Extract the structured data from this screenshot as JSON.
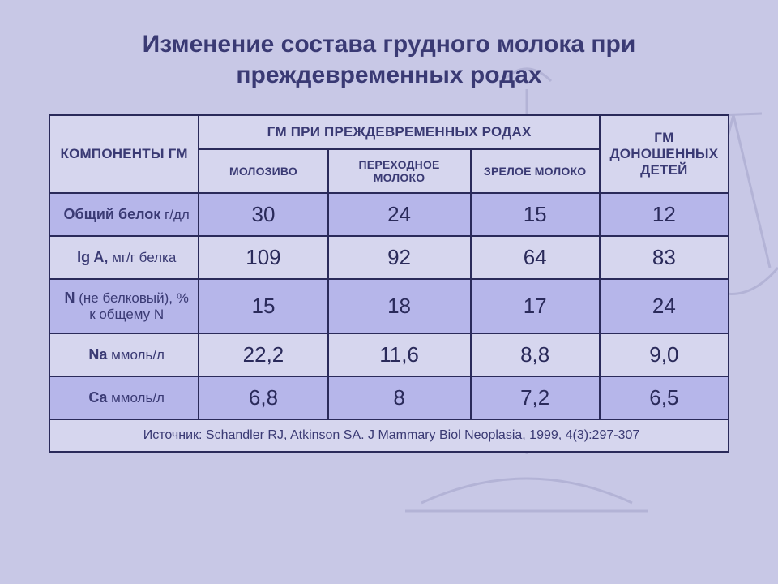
{
  "slide": {
    "title": "Изменение состава грудного молока при преждевременных родах",
    "title_color": "#3a3a74",
    "title_fontsize": 30,
    "title_fontweight": "700",
    "bg_color": "#c8c8e6"
  },
  "scales_watermark": {
    "stroke": "#b3b3d6",
    "stroke_width": 3
  },
  "table": {
    "border_color": "#2a2a5a",
    "border_width": 2,
    "header_bg": "#d6d6ee",
    "header_color": "#3a3a74",
    "header_fontsize": 17,
    "header_fontweight": "700",
    "subheader_fontsize": 14,
    "row_alt1_bg": "#b6b6ea",
    "row_alt2_bg": "#d6d6ee",
    "label_color": "#3a3a74",
    "label_fontsize": 17,
    "label_bold_fontsize": 18,
    "value_color": "#2a2a5a",
    "value_fontsize": 26,
    "columns": {
      "group": "Компоненты ГМ",
      "super": "ГМ при преждевременных родах",
      "sub": [
        "Молозиво",
        "Переходное молоко",
        "Зрелое молоко"
      ],
      "right": "ГМ доношенных детей"
    },
    "rows": [
      {
        "bold": "Общий белок",
        "rest": " г/дл",
        "bg": "#b6b6ea",
        "cells": [
          "30",
          "24",
          "15",
          "12"
        ]
      },
      {
        "bold": "Ig A,",
        "rest": " мг/г белка",
        "bg": "#d6d6ee",
        "cells": [
          "109",
          "92",
          "64",
          "83"
        ]
      },
      {
        "bold": "N",
        "rest": " (не белковый), % к общему N",
        "bg": "#b6b6ea",
        "cells": [
          "15",
          "18",
          "17",
          "24"
        ]
      },
      {
        "bold": "Na",
        "rest": " ммоль/л",
        "bg": "#d6d6ee",
        "cells": [
          "22,2",
          "11,6",
          "8,8",
          "9,0"
        ]
      },
      {
        "bold": "Ca",
        "rest": " ммоль/л",
        "bg": "#b6b6ea",
        "cells": [
          "6,8",
          "8",
          "7,2",
          "6,5"
        ]
      }
    ],
    "footnote": {
      "text": "Источник: Schandler RJ, Atkinson SA. J Mammary Biol Neoplasia, 1999, 4(3):297-307",
      "fontsize": 16,
      "color": "#3a3a74",
      "bg": "#d6d6ee"
    }
  }
}
